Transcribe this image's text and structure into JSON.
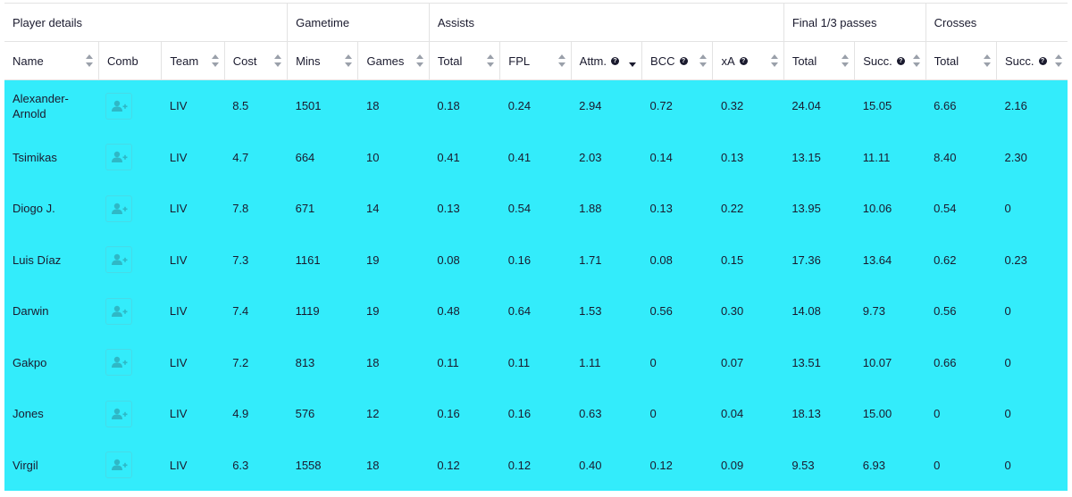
{
  "groups": [
    {
      "label": "Player details",
      "span": 4
    },
    {
      "label": "Gametime",
      "span": 2
    },
    {
      "label": "Assists",
      "span": 5
    },
    {
      "label": "Final 1/3 passes",
      "span": 2
    },
    {
      "label": "Crosses",
      "span": 2
    }
  ],
  "columns": [
    {
      "label": "Name",
      "sortable": true,
      "help": false
    },
    {
      "label": "Comb",
      "sortable": false,
      "help": false
    },
    {
      "label": "Team",
      "sortable": true,
      "help": false
    },
    {
      "label": "Cost",
      "sortable": true,
      "help": false
    },
    {
      "label": "Mins",
      "sortable": true,
      "help": false
    },
    {
      "label": "Games",
      "sortable": true,
      "help": false
    },
    {
      "label": "Total",
      "sortable": true,
      "help": false
    },
    {
      "label": "FPL",
      "sortable": true,
      "help": false
    },
    {
      "label": "Attm.",
      "sortable": true,
      "help": true,
      "sort_active": "desc"
    },
    {
      "label": "BCC",
      "sortable": true,
      "help": true
    },
    {
      "label": "xA",
      "sortable": true,
      "help": true
    },
    {
      "label": "Total",
      "sortable": true,
      "help": false
    },
    {
      "label": "Succ.",
      "sortable": true,
      "help": true
    },
    {
      "label": "Total",
      "sortable": true,
      "help": false
    },
    {
      "label": "Succ.",
      "sortable": true,
      "help": true
    }
  ],
  "help_glyph": "?",
  "comb_icon": "add-user-icon",
  "rows": [
    {
      "name": "Alexander-Arnold",
      "team": "LIV",
      "cost": "8.5",
      "mins": "1501",
      "games": "18",
      "assists_total": "0.18",
      "fpl": "0.24",
      "attm": "2.94",
      "bcc": "0.72",
      "xa": "0.32",
      "final_total": "24.04",
      "final_succ": "15.05",
      "crosses_total": "6.66",
      "crosses_succ": "2.16"
    },
    {
      "name": "Tsimikas",
      "team": "LIV",
      "cost": "4.7",
      "mins": "664",
      "games": "10",
      "assists_total": "0.41",
      "fpl": "0.41",
      "attm": "2.03",
      "bcc": "0.14",
      "xa": "0.13",
      "final_total": "13.15",
      "final_succ": "11.11",
      "crosses_total": "8.40",
      "crosses_succ": "2.30"
    },
    {
      "name": "Diogo J.",
      "team": "LIV",
      "cost": "7.8",
      "mins": "671",
      "games": "14",
      "assists_total": "0.13",
      "fpl": "0.54",
      "attm": "1.88",
      "bcc": "0.13",
      "xa": "0.22",
      "final_total": "13.95",
      "final_succ": "10.06",
      "crosses_total": "0.54",
      "crosses_succ": "0"
    },
    {
      "name": "Luis Díaz",
      "team": "LIV",
      "cost": "7.3",
      "mins": "1161",
      "games": "19",
      "assists_total": "0.08",
      "fpl": "0.16",
      "attm": "1.71",
      "bcc": "0.08",
      "xa": "0.15",
      "final_total": "17.36",
      "final_succ": "13.64",
      "crosses_total": "0.62",
      "crosses_succ": "0.23"
    },
    {
      "name": "Darwin",
      "team": "LIV",
      "cost": "7.4",
      "mins": "1119",
      "games": "19",
      "assists_total": "0.48",
      "fpl": "0.64",
      "attm": "1.53",
      "bcc": "0.56",
      "xa": "0.30",
      "final_total": "14.08",
      "final_succ": "9.73",
      "crosses_total": "0.56",
      "crosses_succ": "0"
    },
    {
      "name": "Gakpo",
      "team": "LIV",
      "cost": "7.2",
      "mins": "813",
      "games": "18",
      "assists_total": "0.11",
      "fpl": "0.11",
      "attm": "1.11",
      "bcc": "0",
      "xa": "0.07",
      "final_total": "13.51",
      "final_succ": "10.07",
      "crosses_total": "0.66",
      "crosses_succ": "0"
    },
    {
      "name": "Jones",
      "team": "LIV",
      "cost": "4.9",
      "mins": "576",
      "games": "12",
      "assists_total": "0.16",
      "fpl": "0.16",
      "attm": "0.63",
      "bcc": "0",
      "xa": "0.04",
      "final_total": "18.13",
      "final_succ": "15.00",
      "crosses_total": "0",
      "crosses_succ": "0"
    },
    {
      "name": "Virgil",
      "team": "LIV",
      "cost": "6.3",
      "mins": "1558",
      "games": "18",
      "assists_total": "0.12",
      "fpl": "0.12",
      "attm": "0.40",
      "bcc": "0.12",
      "xa": "0.09",
      "final_total": "9.53",
      "final_succ": "6.93",
      "crosses_total": "0",
      "crosses_succ": "0"
    }
  ],
  "colors": {
    "row_bg": "#33ecfb",
    "text": "#1a1a2e",
    "header_bg": "#ffffff"
  }
}
